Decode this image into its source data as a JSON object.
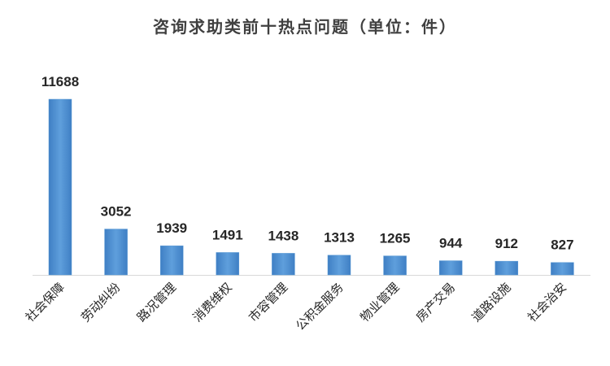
{
  "chart_data": {
    "type": "bar",
    "title": "咨询求助类前十热点问题（单位：件）",
    "categories": [
      "社会保障",
      "劳动纠纷",
      "路况管理",
      "消费维权",
      "市容管理",
      "公积金服务",
      "物业管理",
      "房产交易",
      "道路设施",
      "社会治安"
    ],
    "values": [
      11688,
      3052,
      1939,
      1491,
      1438,
      1313,
      1265,
      944,
      912,
      827
    ],
    "color": "#5b9bd5"
  }
}
